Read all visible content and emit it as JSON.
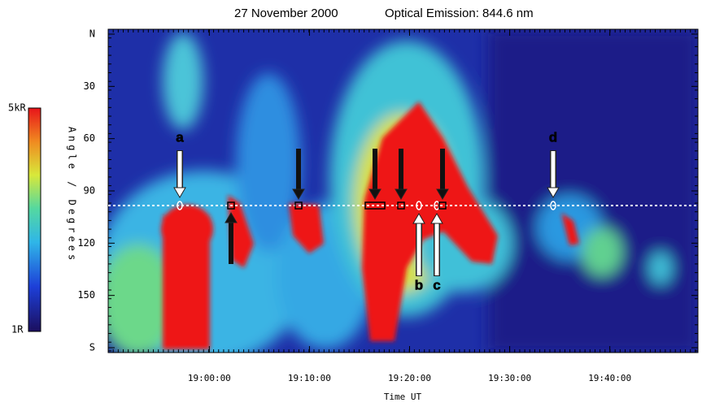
{
  "chart_data": {
    "type": "keogram",
    "title": "27 November 2000",
    "subtitle": "Optical Emission: 844.6 nm",
    "x_label": "Time UT",
    "y_label": "Angle / Degrees",
    "xlim": [
      1129.9,
      1188.8
    ],
    "xticks": [
      {
        "value": 1140,
        "label": "19:00:00"
      },
      {
        "value": 1150,
        "label": "19:10:00"
      },
      {
        "value": 1160,
        "label": "19:20:00"
      },
      {
        "value": 1170,
        "label": "19:30:00"
      },
      {
        "value": 1180,
        "label": "19:40:00"
      }
    ],
    "ylim": [
      -2.8,
      182.8
    ],
    "yticks": [
      {
        "value": 0,
        "label": "N"
      },
      30,
      60,
      90,
      120,
      150,
      {
        "value": 180,
        "label": "S"
      }
    ],
    "colorbar_labels": [
      "5kR",
      "1R"
    ],
    "reference_angle": 98.4,
    "annotations": [
      "a",
      "b",
      "c",
      "d"
    ]
  }
}
